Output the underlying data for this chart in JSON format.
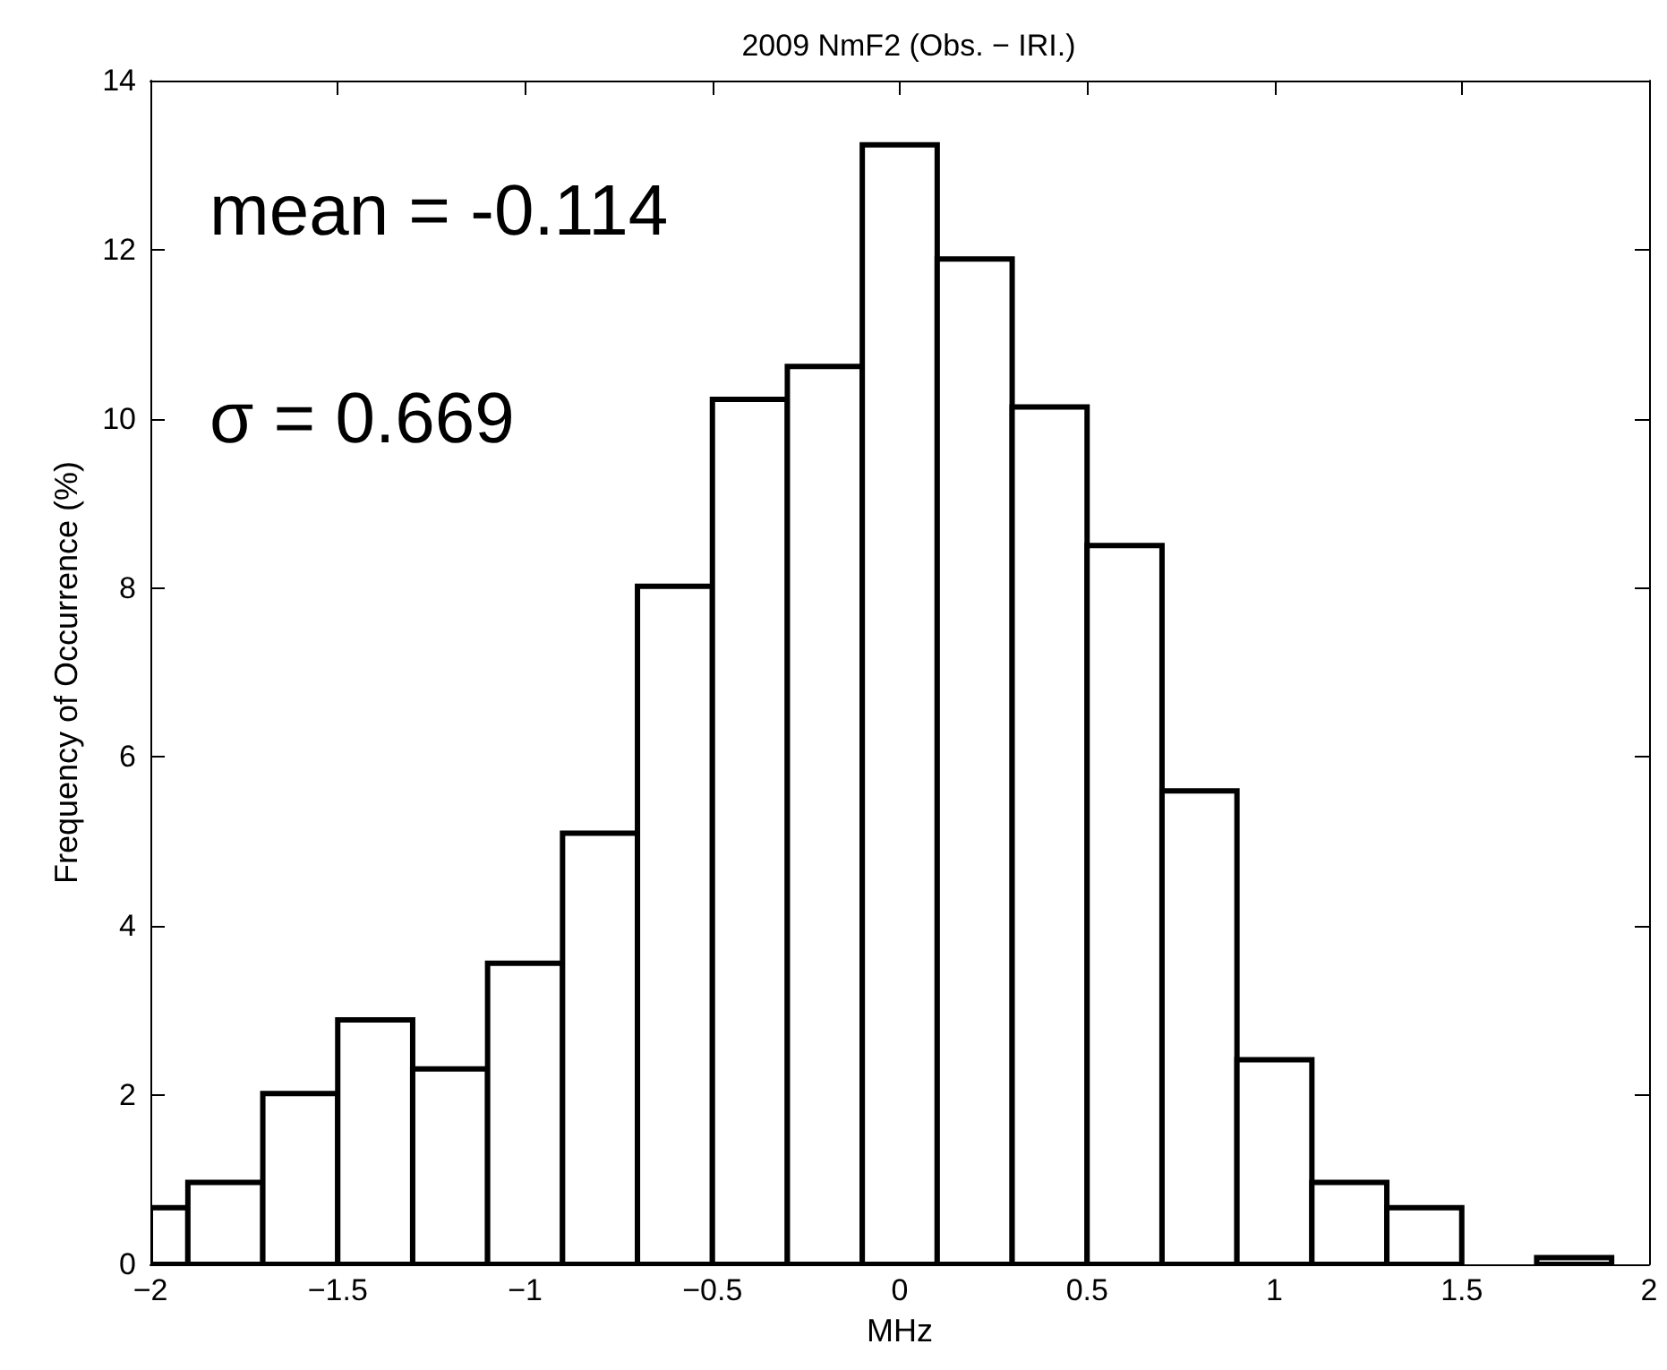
{
  "chart_data": {
    "type": "histogram",
    "title": "2009 NmF2 (Obs. − IRI.)",
    "xlabel": "MHz",
    "ylabel": "Frequency of Occurrence (%)",
    "annotations": [
      "mean = -0.114",
      "σ = 0.669"
    ],
    "bins": [
      -2,
      -1.9,
      -1.7,
      -1.5,
      -1.3,
      -1.1,
      -0.9,
      -0.7,
      -0.5,
      -0.3,
      -0.1,
      0.1,
      0.3,
      0.5,
      0.7,
      0.9,
      1.1,
      1.3,
      1.5,
      1.7,
      1.9
    ],
    "values": [
      0.67,
      0.97,
      2.02,
      2.89,
      2.31,
      3.56,
      5.1,
      8.02,
      10.23,
      10.62,
      13.24,
      11.89,
      10.14,
      8.5,
      5.6,
      2.42,
      0.97,
      0.67,
      0,
      0.08
    ],
    "color": "#ffffff",
    "xlim": [
      -2,
      2
    ],
    "xticks": [
      {
        "value": -2,
        "label": "−2"
      },
      {
        "value": -1.5,
        "label": "−1.5"
      },
      {
        "value": -1,
        "label": "−1"
      },
      {
        "value": -0.5,
        "label": "−0.5"
      },
      0,
      0.5,
      1,
      1.5,
      2
    ],
    "ylim": [
      0,
      14
    ],
    "yticks": [
      0,
      2,
      4,
      6,
      8,
      10,
      12,
      14
    ],
    "grid": false
  }
}
